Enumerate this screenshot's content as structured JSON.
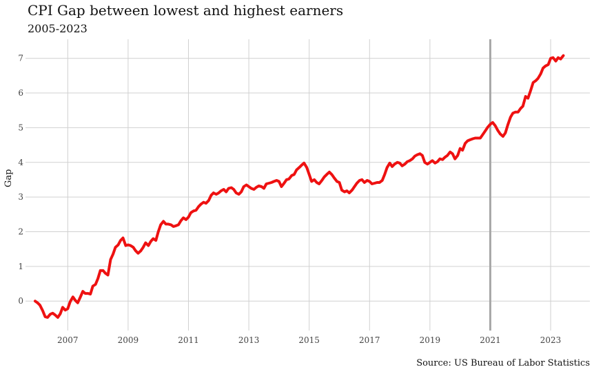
{
  "chart_data": {
    "type": "line",
    "title": "CPI Gap between lowest and highest earners",
    "subtitle": "2005-2023",
    "caption": "Source: US Bureau of Labor Statistics",
    "xlabel": "",
    "ylabel": "Gap",
    "xlim": [
      2005.6,
      2024.3
    ],
    "ylim": [
      -0.85,
      7.55
    ],
    "x_ticks": [
      2007,
      2009,
      2011,
      2013,
      2015,
      2017,
      2019,
      2021,
      2023
    ],
    "x_tick_labels": [
      "2007",
      "2009",
      "2011",
      "2013",
      "2015",
      "2017",
      "2019",
      "2021",
      "2023"
    ],
    "y_ticks": [
      0,
      1,
      2,
      3,
      4,
      5,
      6,
      7
    ],
    "y_tick_labels": [
      "0",
      "1",
      "2",
      "3",
      "4",
      "5",
      "6",
      "7"
    ],
    "grid": true,
    "vline": {
      "x": 2021.0,
      "color": "#a8a8a8"
    },
    "series": [
      {
        "color": "#ee1111",
        "points": [
          [
            2005.92,
            0.0
          ],
          [
            2006.0,
            -0.05
          ],
          [
            2006.08,
            -0.12
          ],
          [
            2006.17,
            -0.28
          ],
          [
            2006.25,
            -0.45
          ],
          [
            2006.33,
            -0.47
          ],
          [
            2006.42,
            -0.38
          ],
          [
            2006.5,
            -0.35
          ],
          [
            2006.58,
            -0.4
          ],
          [
            2006.67,
            -0.47
          ],
          [
            2006.75,
            -0.37
          ],
          [
            2006.83,
            -0.18
          ],
          [
            2006.92,
            -0.26
          ],
          [
            2007.0,
            -0.22
          ],
          [
            2007.08,
            -0.02
          ],
          [
            2007.17,
            0.12
          ],
          [
            2007.25,
            0.02
          ],
          [
            2007.33,
            -0.05
          ],
          [
            2007.42,
            0.12
          ],
          [
            2007.5,
            0.28
          ],
          [
            2007.58,
            0.22
          ],
          [
            2007.67,
            0.22
          ],
          [
            2007.75,
            0.2
          ],
          [
            2007.83,
            0.43
          ],
          [
            2007.92,
            0.48
          ],
          [
            2008.0,
            0.65
          ],
          [
            2008.08,
            0.88
          ],
          [
            2008.17,
            0.88
          ],
          [
            2008.25,
            0.8
          ],
          [
            2008.33,
            0.75
          ],
          [
            2008.42,
            1.2
          ],
          [
            2008.5,
            1.35
          ],
          [
            2008.58,
            1.55
          ],
          [
            2008.67,
            1.62
          ],
          [
            2008.75,
            1.75
          ],
          [
            2008.83,
            1.82
          ],
          [
            2008.92,
            1.6
          ],
          [
            2009.0,
            1.62
          ],
          [
            2009.08,
            1.6
          ],
          [
            2009.17,
            1.55
          ],
          [
            2009.25,
            1.45
          ],
          [
            2009.33,
            1.38
          ],
          [
            2009.42,
            1.45
          ],
          [
            2009.5,
            1.55
          ],
          [
            2009.58,
            1.68
          ],
          [
            2009.67,
            1.6
          ],
          [
            2009.75,
            1.72
          ],
          [
            2009.83,
            1.8
          ],
          [
            2009.92,
            1.75
          ],
          [
            2010.0,
            2.0
          ],
          [
            2010.08,
            2.2
          ],
          [
            2010.17,
            2.3
          ],
          [
            2010.25,
            2.22
          ],
          [
            2010.33,
            2.22
          ],
          [
            2010.42,
            2.2
          ],
          [
            2010.5,
            2.15
          ],
          [
            2010.58,
            2.17
          ],
          [
            2010.67,
            2.2
          ],
          [
            2010.75,
            2.32
          ],
          [
            2010.83,
            2.4
          ],
          [
            2010.92,
            2.35
          ],
          [
            2011.0,
            2.42
          ],
          [
            2011.08,
            2.55
          ],
          [
            2011.17,
            2.6
          ],
          [
            2011.25,
            2.62
          ],
          [
            2011.33,
            2.72
          ],
          [
            2011.42,
            2.8
          ],
          [
            2011.5,
            2.85
          ],
          [
            2011.58,
            2.82
          ],
          [
            2011.67,
            2.9
          ],
          [
            2011.75,
            3.05
          ],
          [
            2011.83,
            3.12
          ],
          [
            2011.92,
            3.08
          ],
          [
            2012.0,
            3.12
          ],
          [
            2012.08,
            3.18
          ],
          [
            2012.17,
            3.22
          ],
          [
            2012.25,
            3.15
          ],
          [
            2012.33,
            3.25
          ],
          [
            2012.42,
            3.27
          ],
          [
            2012.5,
            3.22
          ],
          [
            2012.58,
            3.12
          ],
          [
            2012.67,
            3.08
          ],
          [
            2012.75,
            3.15
          ],
          [
            2012.83,
            3.3
          ],
          [
            2012.92,
            3.35
          ],
          [
            2013.0,
            3.3
          ],
          [
            2013.08,
            3.25
          ],
          [
            2013.17,
            3.22
          ],
          [
            2013.25,
            3.28
          ],
          [
            2013.33,
            3.32
          ],
          [
            2013.42,
            3.3
          ],
          [
            2013.5,
            3.25
          ],
          [
            2013.58,
            3.38
          ],
          [
            2013.67,
            3.4
          ],
          [
            2013.75,
            3.42
          ],
          [
            2013.83,
            3.45
          ],
          [
            2013.92,
            3.48
          ],
          [
            2014.0,
            3.45
          ],
          [
            2014.08,
            3.3
          ],
          [
            2014.17,
            3.4
          ],
          [
            2014.25,
            3.5
          ],
          [
            2014.33,
            3.52
          ],
          [
            2014.42,
            3.62
          ],
          [
            2014.5,
            3.65
          ],
          [
            2014.58,
            3.78
          ],
          [
            2014.67,
            3.85
          ],
          [
            2014.75,
            3.92
          ],
          [
            2014.83,
            3.98
          ],
          [
            2014.92,
            3.85
          ],
          [
            2015.0,
            3.65
          ],
          [
            2015.08,
            3.45
          ],
          [
            2015.17,
            3.5
          ],
          [
            2015.25,
            3.42
          ],
          [
            2015.33,
            3.38
          ],
          [
            2015.42,
            3.48
          ],
          [
            2015.5,
            3.58
          ],
          [
            2015.58,
            3.65
          ],
          [
            2015.67,
            3.72
          ],
          [
            2015.75,
            3.65
          ],
          [
            2015.83,
            3.55
          ],
          [
            2015.92,
            3.45
          ],
          [
            2016.0,
            3.42
          ],
          [
            2016.08,
            3.2
          ],
          [
            2016.17,
            3.15
          ],
          [
            2016.25,
            3.18
          ],
          [
            2016.33,
            3.12
          ],
          [
            2016.42,
            3.2
          ],
          [
            2016.5,
            3.3
          ],
          [
            2016.58,
            3.4
          ],
          [
            2016.67,
            3.48
          ],
          [
            2016.75,
            3.5
          ],
          [
            2016.83,
            3.42
          ],
          [
            2016.92,
            3.48
          ],
          [
            2017.0,
            3.45
          ],
          [
            2017.08,
            3.38
          ],
          [
            2017.17,
            3.4
          ],
          [
            2017.25,
            3.42
          ],
          [
            2017.33,
            3.42
          ],
          [
            2017.42,
            3.48
          ],
          [
            2017.5,
            3.65
          ],
          [
            2017.58,
            3.85
          ],
          [
            2017.67,
            3.98
          ],
          [
            2017.75,
            3.88
          ],
          [
            2017.83,
            3.95
          ],
          [
            2017.92,
            4.0
          ],
          [
            2018.0,
            3.98
          ],
          [
            2018.08,
            3.9
          ],
          [
            2018.17,
            3.95
          ],
          [
            2018.25,
            4.02
          ],
          [
            2018.33,
            4.05
          ],
          [
            2018.42,
            4.1
          ],
          [
            2018.5,
            4.18
          ],
          [
            2018.58,
            4.22
          ],
          [
            2018.67,
            4.25
          ],
          [
            2018.75,
            4.2
          ],
          [
            2018.83,
            4.0
          ],
          [
            2018.92,
            3.95
          ],
          [
            2019.0,
            4.0
          ],
          [
            2019.08,
            4.05
          ],
          [
            2019.17,
            3.98
          ],
          [
            2019.25,
            4.02
          ],
          [
            2019.33,
            4.1
          ],
          [
            2019.42,
            4.08
          ],
          [
            2019.5,
            4.15
          ],
          [
            2019.58,
            4.2
          ],
          [
            2019.67,
            4.3
          ],
          [
            2019.75,
            4.25
          ],
          [
            2019.83,
            4.1
          ],
          [
            2019.92,
            4.2
          ],
          [
            2020.0,
            4.4
          ],
          [
            2020.08,
            4.35
          ],
          [
            2020.17,
            4.55
          ],
          [
            2020.25,
            4.62
          ],
          [
            2020.33,
            4.65
          ],
          [
            2020.42,
            4.68
          ],
          [
            2020.5,
            4.7
          ],
          [
            2020.58,
            4.7
          ],
          [
            2020.67,
            4.7
          ],
          [
            2020.75,
            4.8
          ],
          [
            2020.83,
            4.9
          ],
          [
            2020.92,
            5.02
          ],
          [
            2021.0,
            5.1
          ],
          [
            2021.08,
            5.15
          ],
          [
            2021.17,
            5.05
          ],
          [
            2021.25,
            4.92
          ],
          [
            2021.33,
            4.82
          ],
          [
            2021.42,
            4.75
          ],
          [
            2021.5,
            4.85
          ],
          [
            2021.58,
            5.08
          ],
          [
            2021.67,
            5.3
          ],
          [
            2021.75,
            5.42
          ],
          [
            2021.83,
            5.45
          ],
          [
            2021.92,
            5.45
          ],
          [
            2022.0,
            5.55
          ],
          [
            2022.08,
            5.62
          ],
          [
            2022.17,
            5.9
          ],
          [
            2022.25,
            5.85
          ],
          [
            2022.33,
            6.05
          ],
          [
            2022.42,
            6.3
          ],
          [
            2022.5,
            6.35
          ],
          [
            2022.58,
            6.42
          ],
          [
            2022.67,
            6.55
          ],
          [
            2022.75,
            6.72
          ],
          [
            2022.83,
            6.78
          ],
          [
            2022.92,
            6.82
          ],
          [
            2023.0,
            7.0
          ],
          [
            2023.08,
            7.02
          ],
          [
            2023.17,
            6.92
          ],
          [
            2023.25,
            7.02
          ],
          [
            2023.33,
            6.98
          ],
          [
            2023.42,
            7.08
          ]
        ]
      }
    ]
  }
}
